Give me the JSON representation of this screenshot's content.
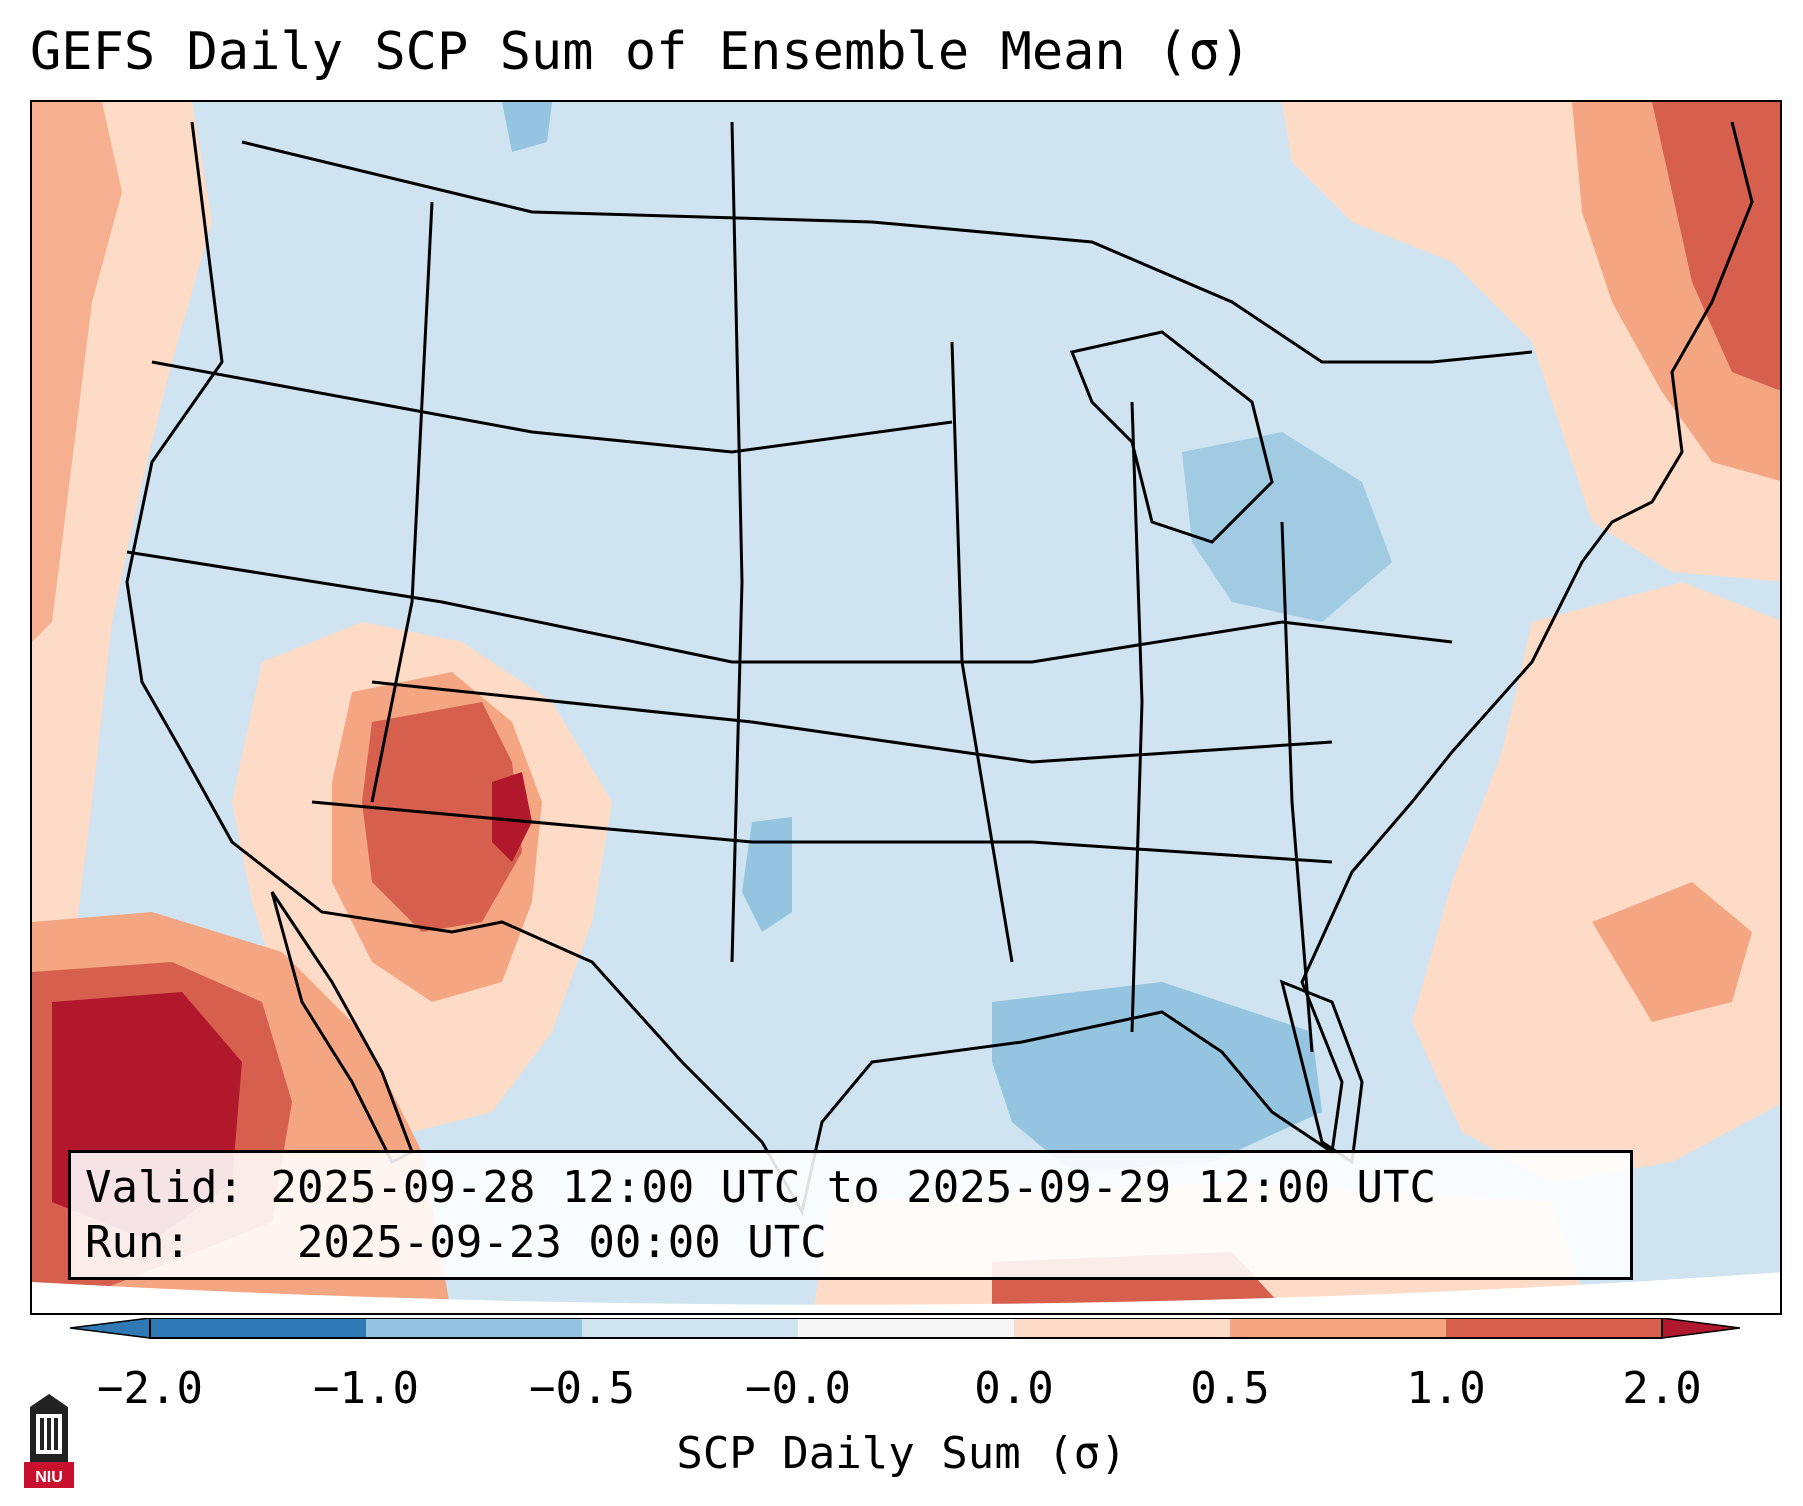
{
  "title": "GEFS Daily SCP Sum of Ensemble Mean (σ)",
  "info": {
    "valid_label": "Valid:",
    "valid_value": "2025-09-28 12:00 UTC to 2025-09-29 12:00 UTC",
    "run_label": "Run:",
    "run_value": "2025-09-23 00:00 UTC"
  },
  "colorbar": {
    "label": "SCP Daily Sum (σ)",
    "ticks": [
      "−2.0",
      "−1.0",
      "−0.5",
      "−0.0",
      "0.0",
      "0.5",
      "1.0",
      "2.0"
    ],
    "colors": [
      "#2f79b5",
      "#94c4df",
      "#d1e5f0",
      "#f7f7f7",
      "#fddbc7",
      "#f4a582",
      "#d6604d",
      "#b2182b"
    ],
    "extend": "both"
  },
  "logo": {
    "text": "NIU",
    "icon": "niu-logo-icon"
  },
  "map": {
    "background_color": "#d1e5f0",
    "anomaly_regions": [
      {
        "name": "southwest",
        "level": "1.0"
      },
      {
        "name": "eastern-pacific",
        "level": "2.0"
      },
      {
        "name": "northeast",
        "level": "1.0"
      },
      {
        "name": "gulf-of-mexico",
        "level": "-0.5"
      },
      {
        "name": "western-atlantic",
        "level": "0.0"
      }
    ]
  }
}
